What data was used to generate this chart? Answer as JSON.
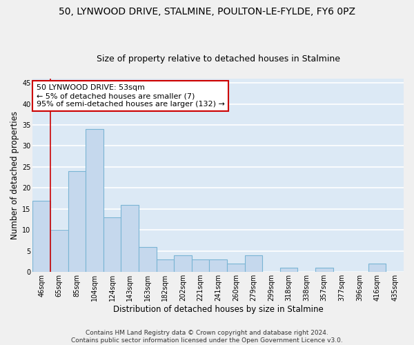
{
  "title_line1": "50, LYNWOOD DRIVE, STALMINE, POULTON-LE-FYLDE, FY6 0PZ",
  "title_line2": "Size of property relative to detached houses in Stalmine",
  "xlabel": "Distribution of detached houses by size in Stalmine",
  "ylabel": "Number of detached properties",
  "categories": [
    "46sqm",
    "65sqm",
    "85sqm",
    "104sqm",
    "124sqm",
    "143sqm",
    "163sqm",
    "182sqm",
    "202sqm",
    "221sqm",
    "241sqm",
    "260sqm",
    "279sqm",
    "299sqm",
    "318sqm",
    "338sqm",
    "357sqm",
    "377sqm",
    "396sqm",
    "416sqm",
    "435sqm"
  ],
  "values": [
    17,
    10,
    24,
    34,
    13,
    16,
    6,
    3,
    4,
    3,
    3,
    2,
    4,
    0,
    1,
    0,
    1,
    0,
    0,
    2,
    0
  ],
  "bar_color": "#c5d8ed",
  "bar_edge_color": "#7ab4d4",
  "annotation_text": "50 LYNWOOD DRIVE: 53sqm\n← 5% of detached houses are smaller (7)\n95% of semi-detached houses are larger (132) →",
  "annotation_box_color": "#ffffff",
  "annotation_box_edge_color": "#cc0000",
  "background_color": "#dce9f5",
  "fig_background_color": "#f0f0f0",
  "grid_color": "#ffffff",
  "footer_line1": "Contains HM Land Registry data © Crown copyright and database right 2024.",
  "footer_line2": "Contains public sector information licensed under the Open Government Licence v3.0.",
  "ylim": [
    0,
    46
  ],
  "yticks": [
    0,
    5,
    10,
    15,
    20,
    25,
    30,
    35,
    40,
    45
  ],
  "title_fontsize": 10,
  "subtitle_fontsize": 9,
  "annotation_fontsize": 8,
  "axis_label_fontsize": 8.5,
  "tick_fontsize": 7,
  "footer_fontsize": 6.5
}
